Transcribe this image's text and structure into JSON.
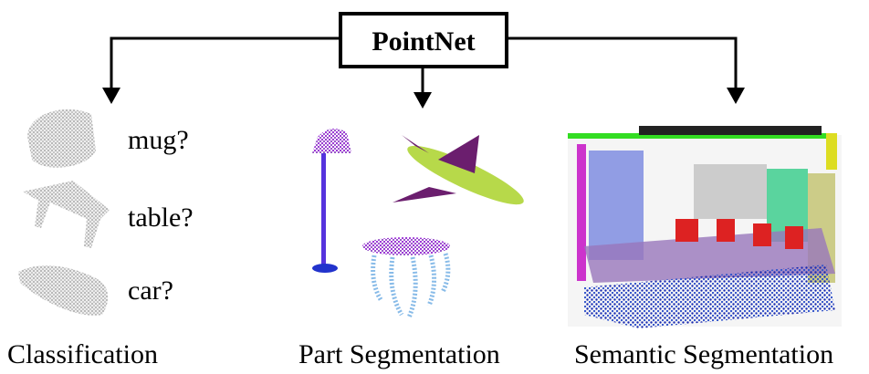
{
  "header": {
    "title": "PointNet"
  },
  "classification": {
    "title": "Classification",
    "labels": [
      "mug?",
      "table?",
      "car?"
    ]
  },
  "part_segmentation": {
    "title": "Part Segmentation"
  },
  "semantic_segmentation": {
    "title": "Semantic Segmentation"
  }
}
